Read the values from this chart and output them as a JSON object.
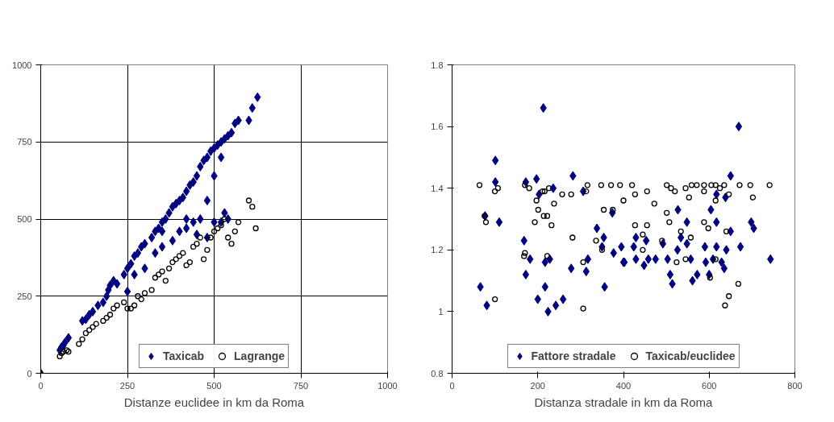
{
  "chart_data": [
    {
      "type": "scatter",
      "xlabel": "Distanze euclidee in km da Roma",
      "xlim": [
        0,
        1000
      ],
      "xticks": [
        0,
        250,
        500,
        750,
        1000
      ],
      "ylim": [
        0,
        1000
      ],
      "yticks": [
        0,
        250,
        500,
        750,
        1000
      ],
      "grid": true,
      "legend": "bottom",
      "series": [
        {
          "name": "Taxicab",
          "color": "#000080",
          "marker": "diamond",
          "x": [
            0,
            55,
            60,
            65,
            70,
            80,
            120,
            130,
            140,
            150,
            165,
            180,
            190,
            195,
            200,
            210,
            220,
            240,
            250,
            260,
            270,
            280,
            290,
            300,
            320,
            330,
            340,
            350,
            360,
            370,
            380,
            390,
            400,
            410,
            420,
            430,
            440,
            450,
            460,
            470,
            480,
            490,
            500,
            510,
            520,
            530,
            540,
            550,
            560,
            570,
            600,
            610,
            625,
            250,
            270,
            300,
            330,
            350,
            380,
            400,
            420,
            440,
            460,
            480,
            500,
            520,
            350,
            420,
            450,
            500,
            520,
            530,
            540,
            480
          ],
          "values": [
            0,
            75,
            85,
            90,
            100,
            115,
            170,
            175,
            190,
            200,
            220,
            230,
            250,
            270,
            285,
            300,
            290,
            320,
            340,
            355,
            380,
            390,
            410,
            420,
            440,
            460,
            470,
            490,
            500,
            520,
            540,
            550,
            560,
            570,
            590,
            610,
            620,
            640,
            670,
            690,
            700,
            720,
            730,
            740,
            750,
            760,
            770,
            780,
            810,
            820,
            820,
            860,
            895,
            265,
            320,
            340,
            390,
            410,
            430,
            460,
            470,
            490,
            500,
            560,
            640,
            700,
            460,
            500,
            450,
            490,
            490,
            520,
            500,
            440
          ]
        },
        {
          "name": "Lagrange",
          "color": "#000000",
          "marker": "circle",
          "x": [
            55,
            60,
            65,
            75,
            80,
            110,
            120,
            130,
            140,
            150,
            160,
            180,
            190,
            200,
            210,
            220,
            240,
            250,
            260,
            270,
            280,
            290,
            300,
            320,
            330,
            340,
            350,
            360,
            370,
            380,
            390,
            400,
            410,
            420,
            430,
            440,
            450,
            460,
            470,
            480,
            490,
            500,
            510,
            520,
            530,
            540,
            550,
            560,
            570,
            600,
            610,
            620
          ],
          "values": [
            55,
            65,
            70,
            75,
            70,
            95,
            110,
            130,
            140,
            150,
            160,
            170,
            180,
            190,
            210,
            220,
            230,
            210,
            210,
            220,
            250,
            240,
            260,
            270,
            310,
            320,
            330,
            300,
            340,
            360,
            370,
            380,
            390,
            350,
            360,
            410,
            420,
            440,
            370,
            400,
            440,
            460,
            470,
            480,
            500,
            440,
            420,
            460,
            490,
            560,
            540,
            470
          ]
        }
      ]
    },
    {
      "type": "scatter",
      "xlabel": "Distanza stradale in km da Roma",
      "xlim": [
        0,
        800
      ],
      "xticks": [
        0,
        200,
        400,
        600,
        800
      ],
      "ylim": [
        0.8,
        1.8
      ],
      "yticks": [
        0.8,
        1,
        1.2,
        1.4,
        1.6,
        1.8
      ],
      "grid": false,
      "legend": "bottom",
      "series": [
        {
          "name": "Fattore stradale",
          "color": "#000080",
          "marker": "diamond",
          "x": [
            66,
            81,
            101,
            101,
            77,
            110,
            168,
            172,
            182,
            172,
            197,
            200,
            203,
            217,
            217,
            224,
            228,
            236,
            242,
            259,
            213,
            282,
            278,
            306,
            313,
            317,
            338,
            354,
            350,
            356,
            374,
            377,
            395,
            402,
            400,
            429,
            424,
            429,
            453,
            448,
            458,
            475,
            492,
            503,
            509,
            514,
            526,
            527,
            548,
            534,
            548,
            557,
            561,
            572,
            590,
            592,
            600,
            604,
            617,
            617,
            609,
            629,
            635,
            640,
            617,
            638,
            650,
            650,
            673,
            669,
            698,
            704,
            743
          ],
          "values": [
            1.08,
            1.02,
            1.49,
            1.42,
            1.31,
            1.29,
            1.23,
            1.42,
            1.17,
            1.12,
            1.43,
            1.04,
            1.38,
            1.08,
            1.16,
            1.0,
            1.17,
            1.4,
            1.02,
            1.04,
            1.66,
            1.44,
            1.14,
            1.39,
            1.13,
            1.17,
            1.27,
            1.24,
            1.21,
            1.08,
            1.32,
            1.19,
            1.21,
            1.16,
            1.16,
            1.24,
            1.21,
            1.17,
            1.23,
            1.15,
            1.17,
            1.17,
            1.22,
            1.17,
            1.12,
            1.09,
            1.2,
            1.33,
            1.29,
            1.24,
            1.22,
            1.17,
            1.1,
            1.12,
            1.21,
            1.16,
            1.12,
            1.33,
            1.29,
            1.21,
            1.17,
            1.16,
            1.14,
            1.2,
            1.38,
            1.37,
            1.44,
            1.26,
            1.21,
            1.6,
            1.29,
            1.27,
            1.17
          ]
        },
        {
          "name": "Taxicab/euclidee",
          "color": "#000000",
          "marker": "circle",
          "x": [
            64,
            76,
            79,
            100,
            100,
            107,
            168,
            170,
            170,
            180,
            197,
            201,
            193,
            211,
            216,
            226,
            214,
            222,
            232,
            238,
            222,
            257,
            278,
            281,
            306,
            306,
            313,
            316,
            336,
            348,
            350,
            354,
            371,
            375,
            392,
            400,
            420,
            427,
            427,
            445,
            445,
            455,
            455,
            472,
            490,
            501,
            507,
            501,
            511,
            520,
            524,
            534,
            545,
            545,
            553,
            557,
            559,
            571,
            588,
            588,
            588,
            598,
            602,
            605,
            615,
            615,
            615,
            625,
            635,
            640,
            646,
            668,
            646,
            637,
            671,
            696,
            702,
            741
          ],
          "values": [
            1.41,
            1.31,
            1.29,
            1.04,
            1.39,
            1.4,
            1.18,
            1.19,
            1.41,
            1.4,
            1.36,
            1.33,
            1.29,
            1.39,
            1.39,
            1.4,
            1.31,
            1.31,
            1.28,
            1.35,
            1.18,
            1.38,
            1.38,
            1.24,
            1.16,
            1.01,
            1.39,
            1.41,
            1.23,
            1.41,
            1.2,
            1.33,
            1.41,
            1.33,
            1.41,
            1.36,
            1.41,
            1.38,
            1.28,
            1.25,
            1.2,
            1.39,
            1.28,
            1.35,
            1.23,
            1.32,
            1.29,
            1.41,
            1.4,
            1.39,
            1.16,
            1.26,
            1.4,
            1.17,
            1.37,
            1.24,
            1.41,
            1.41,
            1.41,
            1.39,
            1.29,
            1.27,
            1.11,
            1.41,
            1.41,
            1.36,
            1.17,
            1.4,
            1.41,
            1.26,
            1.38,
            1.09,
            1.05,
            1.02,
            1.41,
            1.41,
            1.37,
            1.41
          ]
        }
      ]
    }
  ]
}
